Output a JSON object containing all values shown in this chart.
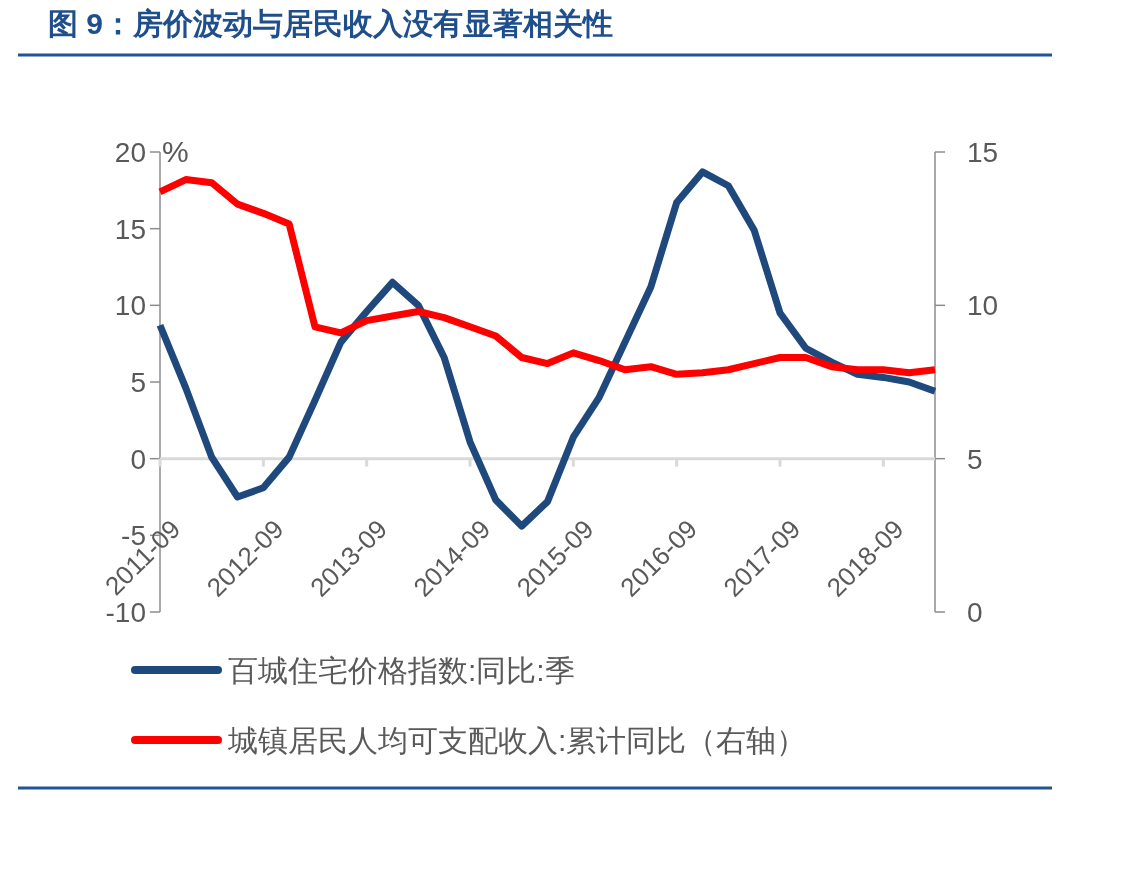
{
  "chart_data": {
    "type": "line",
    "title": "图 9：房价波动与居民收入没有显著相关性",
    "ylabel": "%",
    "x": [
      "2011-09",
      "2011-12",
      "2012-03",
      "2012-06",
      "2012-09",
      "2012-12",
      "2013-03",
      "2013-06",
      "2013-09",
      "2013-12",
      "2014-03",
      "2014-06",
      "2014-09",
      "2014-12",
      "2015-03",
      "2015-06",
      "2015-09",
      "2015-12",
      "2016-03",
      "2016-06",
      "2016-09",
      "2016-12",
      "2017-03",
      "2017-06",
      "2017-09",
      "2017-12",
      "2018-03",
      "2018-06",
      "2018-09",
      "2018-12",
      "2019-03"
    ],
    "xlim": [
      "2011-09",
      "2019-03"
    ],
    "xticks": [
      "2011-09",
      "2012-09",
      "2013-09",
      "2014-09",
      "2015-09",
      "2016-09",
      "2017-09",
      "2018-09"
    ],
    "ylim": [
      -10,
      20
    ],
    "yticks": [
      -10,
      -5,
      0,
      5,
      10,
      15,
      20
    ],
    "y2lim": [
      0,
      15
    ],
    "y2ticks": [
      0,
      5,
      10,
      15
    ],
    "legend": "bottom",
    "series": [
      {
        "name": "百城住宅价格指数:同比:季",
        "color": "#1f497d",
        "values": [
          8.7,
          4.6,
          0.1,
          -2.5,
          -1.9,
          0.1,
          3.8,
          7.6,
          9.6,
          11.5,
          10.0,
          6.6,
          1.1,
          -2.7,
          -4.4,
          -2.8,
          1.4,
          4.0,
          7.6,
          11.2,
          16.7,
          18.7,
          17.8,
          14.9,
          9.5,
          7.2,
          6.3,
          5.5,
          5.3,
          5.0,
          4.4
        ]
      },
      {
        "name": "城镇居民人均可支配收入:累计同比（右轴）",
        "color": "#ff0000",
        "axis": "y2",
        "values": [
          13.7,
          14.1,
          14.0,
          13.3,
          13.0,
          12.65,
          9.3,
          9.1,
          9.5,
          9.65,
          9.8,
          9.6,
          9.3,
          9.0,
          8.3,
          8.1,
          8.45,
          8.2,
          7.9,
          8.0,
          7.75,
          7.8,
          7.9,
          8.1,
          8.3,
          8.3,
          8.0,
          7.9,
          7.9,
          7.8,
          7.9
        ]
      }
    ]
  }
}
